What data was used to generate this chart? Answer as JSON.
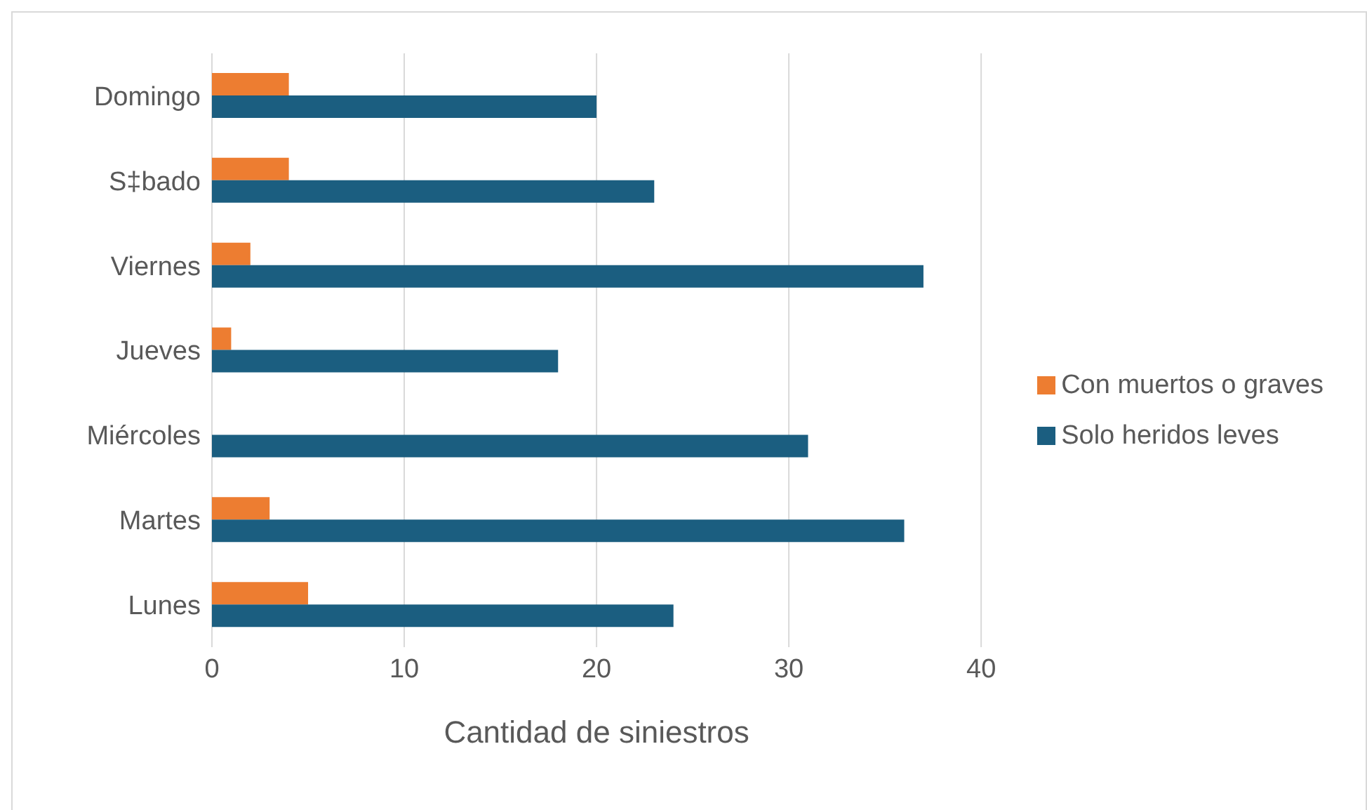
{
  "chart_data": {
    "type": "bar",
    "orientation": "horizontal",
    "xlabel": "Cantidad de siniestros",
    "categories": [
      "Domingo",
      "S‡bado",
      "Viernes",
      "Jueves",
      "Miércoles",
      "Martes",
      "Lunes"
    ],
    "series": [
      {
        "name": "Con muertos o graves",
        "color": "#ed7d31",
        "values": [
          4,
          4,
          2,
          1,
          0,
          3,
          5
        ]
      },
      {
        "name": "Solo heridos leves",
        "color": "#1b5e80",
        "values": [
          20,
          23,
          37,
          18,
          31,
          36,
          24
        ]
      }
    ],
    "xlim": [
      0,
      40
    ],
    "xticks": [
      0,
      10,
      20,
      30,
      40
    ],
    "grid": "x",
    "legend": "right"
  }
}
